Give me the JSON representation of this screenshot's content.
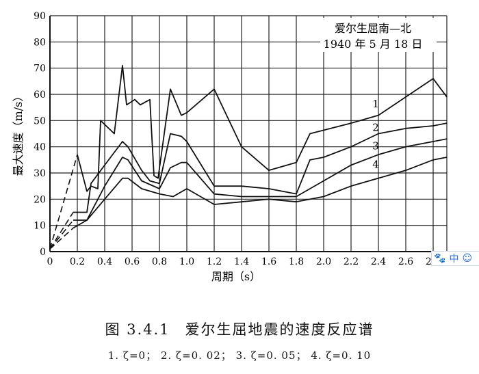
{
  "figure": {
    "number": "图 3.4.1",
    "title": "爱尔生屈地震的速度反应谱",
    "legend_line": "1. ζ=0； 2. ζ=0. 02； 3. ζ=0. 05； 4. ζ=0. 10"
  },
  "toolbar": {
    "paw_icon": "🐾",
    "lang_label": "中",
    "smile_icon": "☺"
  },
  "chart_data": {
    "type": "line",
    "title": [
      "爱尔生屈南—北",
      "1940 年 5 月 18 日"
    ],
    "xlabel": "周期（s）",
    "ylabel": "最大速度（m/s）",
    "xlim": [
      0,
      2.9
    ],
    "ylim": [
      0,
      90
    ],
    "xticks": [
      0,
      0.2,
      0.4,
      0.6,
      0.8,
      1.0,
      1.2,
      1.4,
      1.6,
      1.8,
      2.0,
      2.2,
      2.4,
      2.6,
      2.8
    ],
    "xtick_labels": [
      "0",
      "0.2",
      "0.4",
      "0.6",
      "0.8",
      "1.0",
      "1.2",
      "1.4",
      "1.6",
      "1.8",
      "2.0",
      "2.2",
      "2.4",
      "2.6",
      "2.8"
    ],
    "yticks": [
      0,
      10,
      20,
      30,
      40,
      50,
      60,
      70,
      80,
      90
    ],
    "ytick_labels": [
      "0",
      "10",
      "20",
      "30",
      "40",
      "50",
      "60",
      "70",
      "80",
      "90"
    ],
    "grid": true,
    "series": [
      {
        "name": "1",
        "label_at": [
          2.38,
          55
        ],
        "points": [
          [
            0.0,
            1
          ],
          [
            0.2,
            37
          ],
          [
            0.27,
            23
          ],
          [
            0.3,
            25
          ],
          [
            0.35,
            24
          ],
          [
            0.37,
            50
          ],
          [
            0.47,
            45
          ],
          [
            0.53,
            71
          ],
          [
            0.56,
            56
          ],
          [
            0.62,
            58
          ],
          [
            0.66,
            56
          ],
          [
            0.73,
            58
          ],
          [
            0.76,
            29
          ],
          [
            0.79,
            28
          ],
          [
            0.88,
            62
          ],
          [
            0.96,
            52
          ],
          [
            1.0,
            53
          ],
          [
            1.2,
            62
          ],
          [
            1.4,
            40
          ],
          [
            1.6,
            31
          ],
          [
            1.8,
            34
          ],
          [
            1.9,
            45
          ],
          [
            2.2,
            49
          ],
          [
            2.4,
            52
          ],
          [
            2.8,
            66
          ],
          [
            2.9,
            59
          ]
        ],
        "dashed_until": 0.2
      },
      {
        "name": "2",
        "label_at": [
          2.38,
          46
        ],
        "points": [
          [
            0.0,
            1
          ],
          [
            0.17,
            15
          ],
          [
            0.27,
            15
          ],
          [
            0.3,
            26
          ],
          [
            0.4,
            33
          ],
          [
            0.53,
            42
          ],
          [
            0.57,
            40
          ],
          [
            0.67,
            31
          ],
          [
            0.73,
            27
          ],
          [
            0.8,
            26
          ],
          [
            0.88,
            45
          ],
          [
            0.96,
            44
          ],
          [
            1.0,
            42
          ],
          [
            1.2,
            25
          ],
          [
            1.4,
            25
          ],
          [
            1.6,
            24
          ],
          [
            1.8,
            22
          ],
          [
            1.9,
            35
          ],
          [
            2.0,
            36
          ],
          [
            2.2,
            40
          ],
          [
            2.4,
            45
          ],
          [
            2.6,
            47
          ],
          [
            2.8,
            48
          ],
          [
            2.9,
            49
          ]
        ],
        "dashed_until": 0.17
      },
      {
        "name": "3",
        "label_at": [
          2.38,
          39
        ],
        "points": [
          [
            0.0,
            1
          ],
          [
            0.17,
            12
          ],
          [
            0.27,
            12
          ],
          [
            0.4,
            25
          ],
          [
            0.53,
            36
          ],
          [
            0.57,
            35
          ],
          [
            0.67,
            27
          ],
          [
            0.8,
            24
          ],
          [
            0.88,
            32
          ],
          [
            0.96,
            34
          ],
          [
            1.0,
            34
          ],
          [
            1.2,
            22
          ],
          [
            1.4,
            21
          ],
          [
            1.6,
            21
          ],
          [
            1.8,
            21
          ],
          [
            2.0,
            27
          ],
          [
            2.2,
            33
          ],
          [
            2.4,
            37
          ],
          [
            2.6,
            40
          ],
          [
            2.8,
            42
          ],
          [
            2.9,
            43
          ]
        ],
        "dashed_until": 0.17
      },
      {
        "name": "4",
        "label_at": [
          2.38,
          32
        ],
        "points": [
          [
            0.0,
            1
          ],
          [
            0.17,
            9
          ],
          [
            0.27,
            12
          ],
          [
            0.4,
            20
          ],
          [
            0.53,
            28
          ],
          [
            0.57,
            28
          ],
          [
            0.67,
            24
          ],
          [
            0.8,
            22
          ],
          [
            0.9,
            21
          ],
          [
            1.0,
            24
          ],
          [
            1.2,
            18
          ],
          [
            1.4,
            19
          ],
          [
            1.6,
            20
          ],
          [
            1.8,
            19
          ],
          [
            2.0,
            21
          ],
          [
            2.2,
            25
          ],
          [
            2.4,
            28
          ],
          [
            2.6,
            31
          ],
          [
            2.8,
            35
          ],
          [
            2.9,
            36
          ]
        ],
        "dashed_until": 0.17
      }
    ]
  }
}
